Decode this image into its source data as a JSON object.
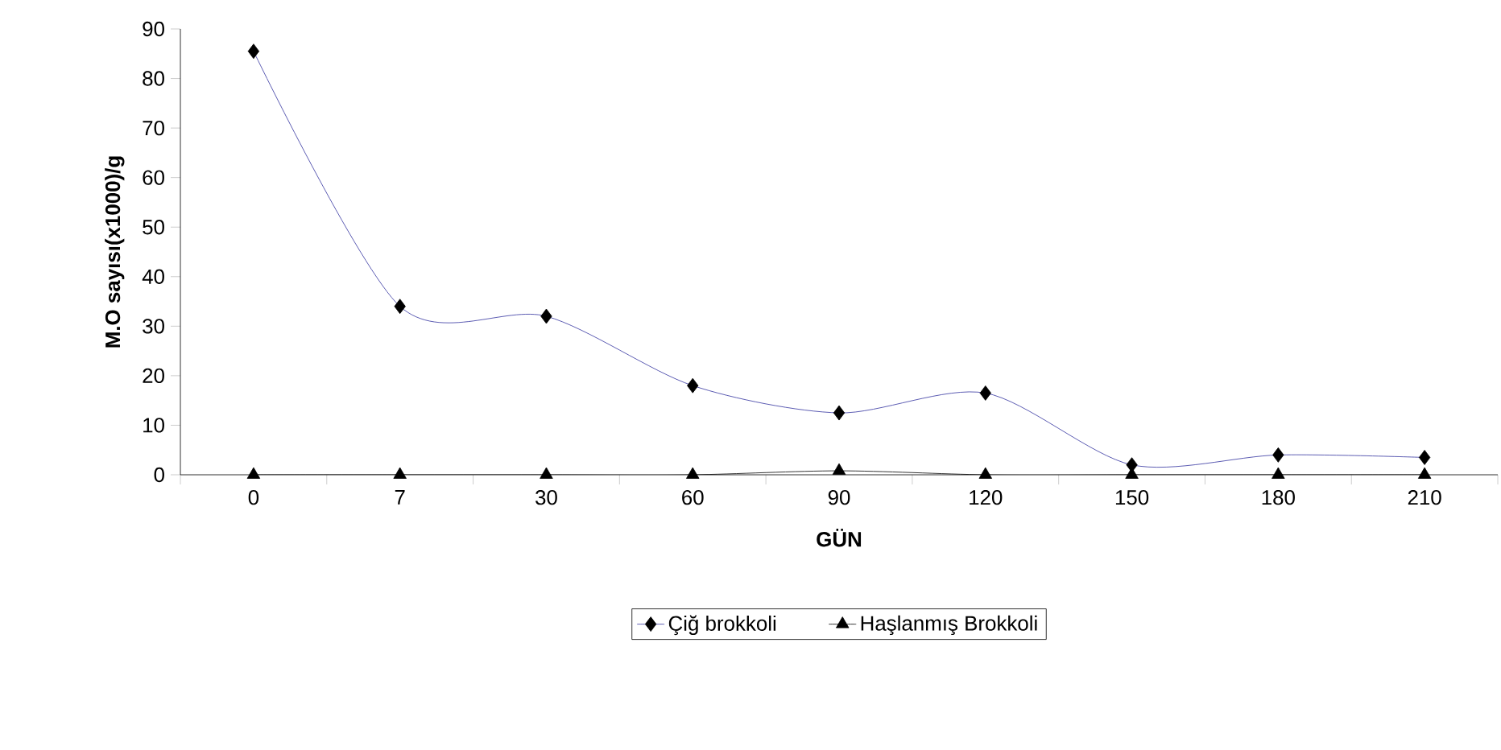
{
  "chart_data": {
    "type": "line",
    "xlabel": "GÜN",
    "ylabel": "M.O sayısı(x1000)/g",
    "categories": [
      "0",
      "7",
      "30",
      "60",
      "90",
      "120",
      "150",
      "180",
      "210"
    ],
    "series": [
      {
        "name": "Çiğ brokkoli",
        "color": "#3333a0",
        "marker": "diamond",
        "values": [
          85.5,
          34,
          32,
          18,
          12.5,
          16.5,
          2,
          4,
          3.5
        ]
      },
      {
        "name": "Haşlanmış Brokkoli",
        "color": "#000000",
        "marker": "triangle",
        "values": [
          0,
          0,
          0,
          0,
          0.8,
          0,
          0,
          0,
          0
        ]
      }
    ],
    "ylim": [
      0,
      90
    ],
    "yticks": [
      0,
      10,
      20,
      30,
      40,
      50,
      60,
      70,
      80,
      90
    ],
    "grid": false,
    "legend": "bottom",
    "line_style": "solid"
  }
}
